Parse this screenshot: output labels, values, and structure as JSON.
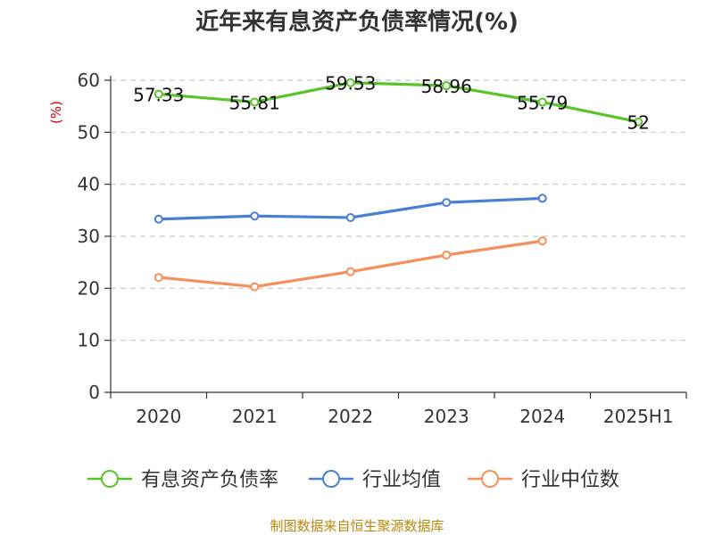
{
  "chart_data": {
    "type": "line",
    "title": "近年来有息资产负债率情况(%)",
    "ylabel": "(%)",
    "xlabel": "",
    "categories": [
      "2020",
      "2021",
      "2022",
      "2023",
      "2024",
      "2025H1"
    ],
    "ylim": [
      0,
      60
    ],
    "yticks": [
      0,
      10,
      20,
      30,
      40,
      50,
      60
    ],
    "grid": true,
    "legend_position": "bottom",
    "series": [
      {
        "name": "有息资产负债率",
        "color": "#5ac328",
        "values": [
          57.33,
          55.81,
          59.53,
          58.96,
          55.79,
          52
        ],
        "labels": [
          "57.33",
          "55.81",
          "59.53",
          "58.96",
          "55.79",
          "52"
        ]
      },
      {
        "name": "行业均值",
        "color": "#4a7fd6",
        "values": [
          33.3,
          33.9,
          33.6,
          36.5,
          37.3,
          null
        ]
      },
      {
        "name": "行业中位数",
        "color": "#f58f5b",
        "values": [
          22.1,
          20.3,
          23.2,
          26.4,
          29.1,
          null
        ]
      }
    ]
  },
  "source": {
    "text": "制图数据来自恒生聚源数据库",
    "color": "#b8860b"
  }
}
